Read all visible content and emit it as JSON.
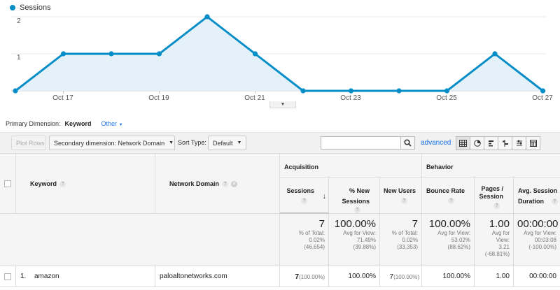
{
  "chart": {
    "legend_label": "Sessions",
    "series_color": "#058dc7",
    "fill_color": "#e4f1f8",
    "y_ticks": [
      "1",
      "2"
    ],
    "x_ticks": [
      "Oct 17",
      "Oct 19",
      "Oct 21",
      "Oct 23",
      "Oct 25",
      "Oct 27"
    ]
  },
  "chart_data": {
    "type": "area",
    "x": [
      "Oct 16",
      "Oct 17",
      "Oct 18",
      "Oct 19",
      "Oct 20",
      "Oct 21",
      "Oct 22",
      "Oct 23",
      "Oct 24",
      "Oct 25",
      "Oct 26",
      "Oct 27"
    ],
    "series": [
      {
        "name": "Sessions",
        "values": [
          0,
          1,
          1,
          1,
          2,
          1,
          0,
          0,
          0,
          0,
          1,
          0
        ]
      }
    ],
    "ylim": [
      0,
      2
    ],
    "grid": true
  },
  "primary_dimension": {
    "label": "Primary Dimension:",
    "selected": "Keyword",
    "other": "Other"
  },
  "toolbar": {
    "plot_rows": "Plot Rows",
    "secondary_dimension": "Secondary dimension: Network Domain",
    "sort_type_label": "Sort Type:",
    "sort_type_value": "Default",
    "advanced": "advanced"
  },
  "table": {
    "headers": {
      "keyword": "Keyword",
      "network_domain": "Network Domain",
      "acquisition": "Acquisition",
      "behavior": "Behavior",
      "sessions": "Sessions",
      "new_sessions_1": "% New",
      "new_sessions_2": "Sessions",
      "new_users": "New Users",
      "bounce_rate": "Bounce Rate",
      "pages_1": "Pages /",
      "pages_2": "Session",
      "avg_dur_1": "Avg. Session",
      "avg_dur_2": "Duration"
    },
    "totals": {
      "sessions": "7",
      "sessions_sub": [
        "% of Total:",
        "0.02%",
        "(46,654)"
      ],
      "new_sessions": "100.00%",
      "new_sessions_sub": [
        "Avg for View:",
        "71.49%",
        "(39.88%)"
      ],
      "new_users": "7",
      "new_users_sub": [
        "% of Total:",
        "0.02%",
        "(33,353)"
      ],
      "bounce_rate": "100.00%",
      "bounce_rate_sub": [
        "Avg for View:",
        "53.02%",
        "(88.62%)"
      ],
      "pages": "1.00",
      "pages_sub": [
        "Avg for",
        "View:",
        "3.21",
        "(-68.81%)"
      ],
      "avg_dur": "00:00:00",
      "avg_dur_sub": [
        "Avg for View:",
        "00:03:08",
        "(-100.00%)"
      ]
    },
    "rows": [
      {
        "index": "1.",
        "keyword": "amazon",
        "network_domain": "paloaltonetworks.com",
        "sessions": "7",
        "sessions_pct": "(100.00%)",
        "new_sessions": "100.00%",
        "new_users": "7",
        "new_users_pct": "(100.00%)",
        "bounce_rate": "100.00%",
        "pages": "1.00",
        "avg_dur": "00:00:00"
      }
    ]
  }
}
